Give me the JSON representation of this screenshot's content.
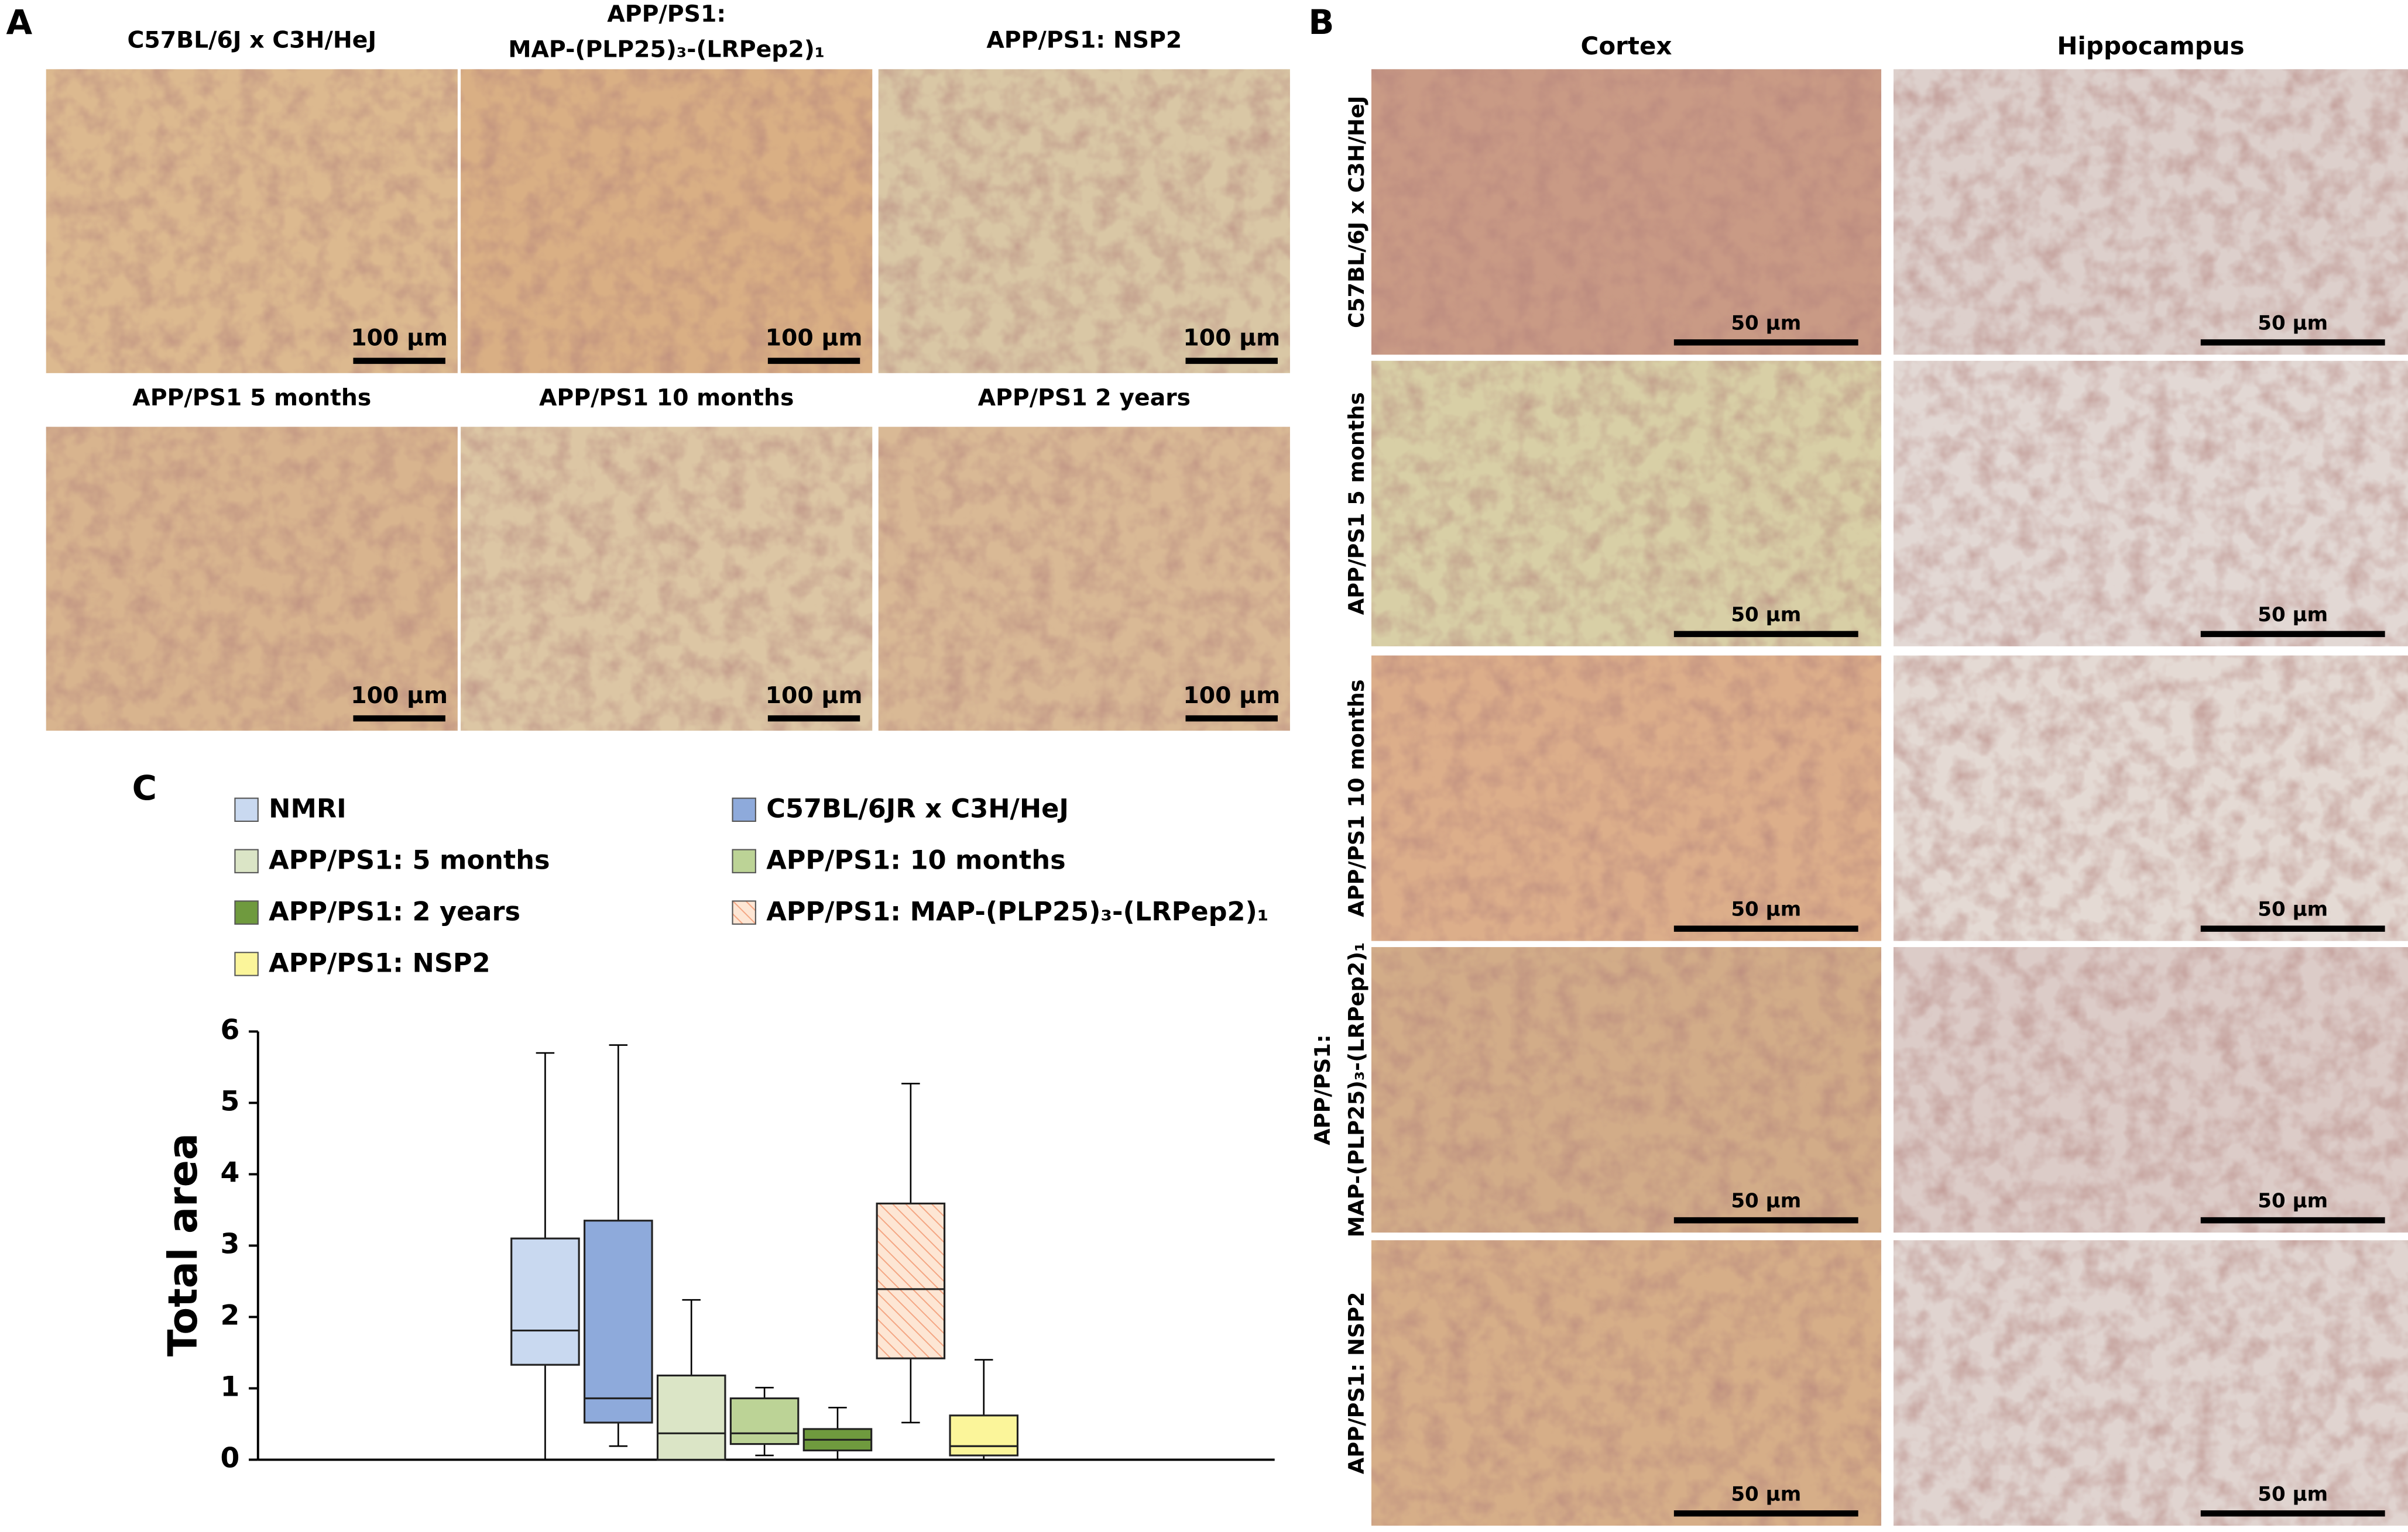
{
  "panel_a": {
    "label": "A",
    "images": [
      {
        "title": [
          "C57BL/6J x C3H/HeJ"
        ],
        "scale": "100 µm"
      },
      {
        "title": [
          "APP/PS1:",
          "MAP-(PLP25)₃-(LRPep2)₁"
        ],
        "scale": "100 µm"
      },
      {
        "title": [
          "APP/PS1: NSP2"
        ],
        "scale": "100 µm"
      },
      {
        "title": [
          "APP/PS1 5 months"
        ],
        "scale": "100 µm"
      },
      {
        "title": [
          "APP/PS1 10 months"
        ],
        "scale": "100 µm"
      },
      {
        "title": [
          "APP/PS1 2 years"
        ],
        "scale": "100 µm"
      }
    ]
  },
  "panel_b": {
    "label": "B",
    "columns": [
      "Cortex",
      "Hippocampus"
    ],
    "rows": [
      {
        "label": [
          "C57BL/6J x C3H/HeJ"
        ],
        "scales": [
          "50 µm",
          "50 µm"
        ]
      },
      {
        "label": [
          "APP/PS1 5 months"
        ],
        "scales": [
          "50 µm",
          "50 µm"
        ]
      },
      {
        "label": [
          "APP/PS1 10 months"
        ],
        "scales": [
          "50 µm",
          "50 µm"
        ]
      },
      {
        "label": [
          "APP/PS1:",
          "MAP-(PLP25)₃-(LRPep2)₁"
        ],
        "scales": [
          "50 µm",
          "50 µm"
        ]
      },
      {
        "label": [
          "APP/PS1: NSP2"
        ],
        "scales": [
          "50 µm",
          "50 µm"
        ]
      }
    ]
  },
  "chart_data": {
    "type": "box",
    "label": "C",
    "y_label": "Total area",
    "ylim": [
      0,
      6
    ],
    "yticks": [
      0,
      1,
      2,
      3,
      4,
      5,
      6
    ],
    "series": [
      {
        "name": "NMRI",
        "color": "#c9d9f0",
        "whisker_low": 0,
        "q1": 1.33,
        "median": 1.81,
        "q3": 3.1,
        "whisker_high": 5.7
      },
      {
        "name": "C57BL/6JR x C3H/HeJ",
        "color": "#8eaadb",
        "whisker_low": 0.19,
        "q1": 0.52,
        "median": 0.86,
        "q3": 3.35,
        "whisker_high": 5.81
      },
      {
        "name": "APP/PS1: 5 months",
        "color": "#dbe5c6",
        "whisker_low": 0,
        "q1": 0,
        "median": 0.37,
        "q3": 1.18,
        "whisker_high": 2.24
      },
      {
        "name": "APP/PS1: 10 months",
        "color": "#bcd396",
        "whisker_low": 0.06,
        "q1": 0.22,
        "median": 0.37,
        "q3": 0.86,
        "whisker_high": 1.01
      },
      {
        "name": "APP/PS1: 2 years",
        "color": "#6f9a3e",
        "whisker_low": 0,
        "q1": 0.13,
        "median": 0.28,
        "q3": 0.43,
        "whisker_high": 0.73
      },
      {
        "name": "APP/PS1: MAP-(PLP25)₃-(LRPep2)₁",
        "color": "#fde6d4",
        "hatch": "#f4a582",
        "whisker_low": 0.52,
        "q1": 1.42,
        "median": 2.39,
        "q3": 3.59,
        "whisker_high": 5.27
      },
      {
        "name": "APP/PS1: NSP2",
        "color": "#fbf59a",
        "whisker_low": 0,
        "q1": 0.06,
        "median": 0.19,
        "q3": 0.62,
        "whisker_high": 1.4
      }
    ]
  }
}
